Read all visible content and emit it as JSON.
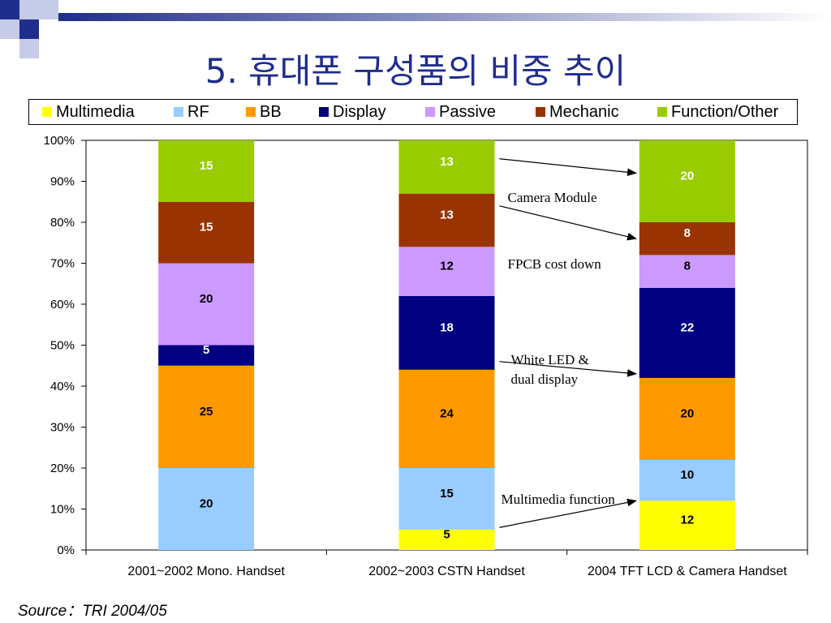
{
  "title": "5. 휴대폰 구성품의 비중 추이",
  "source": "Source：TRI  2004/05",
  "colors": {
    "Multimedia": "#ffff00",
    "RF": "#99ccff",
    "BB": "#ff9900",
    "Display": "#000080",
    "Passive": "#cc99ff",
    "Mechanic": "#993300",
    "Function/Other": "#99cc00"
  },
  "legend": [
    "Multimedia",
    "RF",
    "BB",
    "Display",
    "Passive",
    "Mechanic",
    "Function/Other"
  ],
  "chart_data": {
    "type": "bar",
    "stacked": true,
    "categories": [
      "2001~2002 Mono. Handset",
      "2002~2003 CSTN Handset",
      "2004 TFT LCD & Camera Handset"
    ],
    "series": [
      {
        "name": "Multimedia",
        "values": [
          0,
          5,
          12
        ]
      },
      {
        "name": "RF",
        "values": [
          20,
          15,
          10
        ]
      },
      {
        "name": "BB",
        "values": [
          25,
          24,
          20
        ]
      },
      {
        "name": "Display",
        "values": [
          5,
          18,
          22
        ]
      },
      {
        "name": "Passive",
        "values": [
          20,
          12,
          8
        ]
      },
      {
        "name": "Mechanic",
        "values": [
          15,
          13,
          8
        ]
      },
      {
        "name": "Function/Other",
        "values": [
          15,
          13,
          20
        ]
      }
    ],
    "yticks": [
      "0%",
      "10%",
      "20%",
      "30%",
      "40%",
      "50%",
      "60%",
      "70%",
      "80%",
      "90%",
      "100%"
    ],
    "ylim": [
      0,
      100
    ],
    "legend_position": "top",
    "annotations": [
      {
        "text": "Camera Module",
        "series": "Function/Other"
      },
      {
        "text": "FPCB cost down",
        "series": "Mechanic"
      },
      {
        "text": "White LED &\ndual display",
        "series": "Display"
      },
      {
        "text": "Multimedia function",
        "series": "Multimedia"
      }
    ]
  }
}
